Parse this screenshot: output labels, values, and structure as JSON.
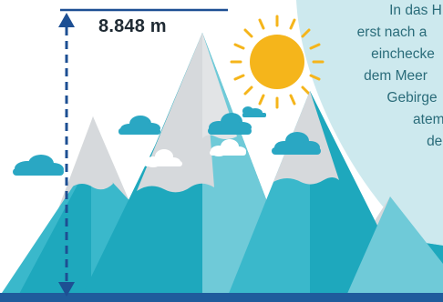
{
  "height_label": "8.848 m",
  "caption_lines": [
    "In das H",
    "erst nach a",
    "einchecke",
    "dem Meer",
    "Gebirge",
    "ateml",
    "den"
  ],
  "colors": {
    "bubble": "#cde9ee",
    "sky_mountain": "#d6d9dc",
    "mountain_dark": "#1ea8bd",
    "mountain_mid": "#3ab8cb",
    "mountain_light": "#6fcad8",
    "cloud": "#2aa7c3",
    "sun": "#f5b51b",
    "arrow": "#1d4f93",
    "ground": "#1f5c9c"
  },
  "icons": {
    "sun": "sun-icon",
    "cloud": "cloud-icon",
    "arrow": "height-arrow-icon"
  }
}
